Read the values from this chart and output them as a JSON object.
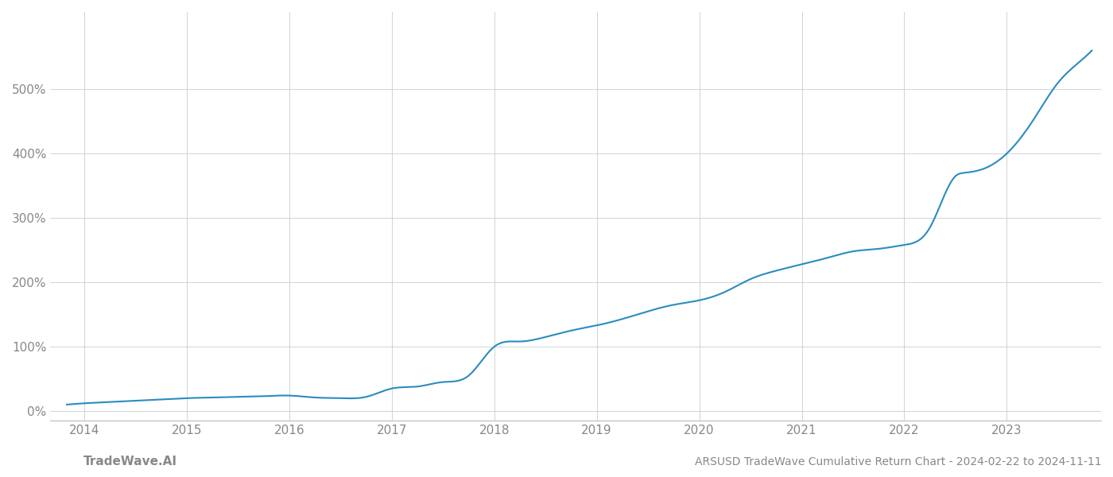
{
  "title": "ARSUSD TradeWave Cumulative Return Chart - 2024-02-22 to 2024-11-11",
  "watermark": "TradeWave.AI",
  "line_color": "#2b8cbf",
  "background_color": "#ffffff",
  "grid_color": "#cccccc",
  "x_years": [
    2014,
    2015,
    2016,
    2017,
    2018,
    2019,
    2020,
    2021,
    2022,
    2023
  ],
  "x_data": [
    2013.83,
    2014.0,
    2014.25,
    2014.5,
    2014.75,
    2015.0,
    2015.25,
    2015.5,
    2015.75,
    2016.0,
    2016.25,
    2016.5,
    2016.75,
    2017.0,
    2017.25,
    2017.5,
    2017.75,
    2018.0,
    2018.25,
    2018.5,
    2018.75,
    2019.0,
    2019.25,
    2019.5,
    2019.75,
    2020.0,
    2020.25,
    2020.5,
    2020.75,
    2021.0,
    2021.25,
    2021.5,
    2021.75,
    2022.0,
    2022.25,
    2022.5,
    2022.583,
    2022.75,
    2023.0,
    2023.25,
    2023.5,
    2023.75,
    2023.83
  ],
  "y_data": [
    10,
    12,
    14,
    16,
    18,
    20,
    21,
    22,
    23,
    24,
    21,
    20,
    22,
    35,
    38,
    45,
    55,
    100,
    108,
    115,
    125,
    133,
    143,
    155,
    165,
    172,
    185,
    205,
    218,
    228,
    238,
    248,
    252,
    258,
    285,
    365,
    370,
    375,
    400,
    450,
    510,
    548,
    560
  ],
  "ylim": [
    -15,
    620
  ],
  "yticks": [
    0,
    100,
    200,
    300,
    400,
    500
  ],
  "xlim": [
    2013.67,
    2023.92
  ],
  "line_width": 1.5,
  "title_fontsize": 10,
  "watermark_fontsize": 11,
  "tick_fontsize": 11,
  "tick_color": "#888888",
  "spine_color": "#bbbbbb",
  "grid_linewidth": 0.6
}
